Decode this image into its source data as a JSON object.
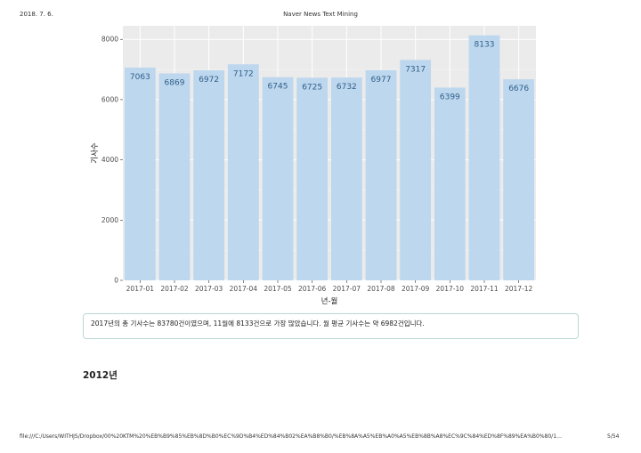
{
  "header": {
    "date": "2018. 7. 6.",
    "title": "Naver News Text Mining"
  },
  "chart_data": {
    "type": "bar",
    "categories": [
      "2017-01",
      "2017-02",
      "2017-03",
      "2017-04",
      "2017-05",
      "2017-06",
      "2017-07",
      "2017-08",
      "2017-09",
      "2017-10",
      "2017-11",
      "2017-12"
    ],
    "values": [
      7063,
      6869,
      6972,
      7172,
      6745,
      6725,
      6732,
      6977,
      7317,
      6399,
      8133,
      6676
    ],
    "xlabel": "년-월",
    "ylabel": "기사수",
    "ylim": [
      0,
      8450
    ],
    "yticks": [
      0,
      2000,
      4000,
      6000,
      8000
    ],
    "grid": true,
    "bar_color": "#bdd7ee",
    "panel_color": "#ebebeb",
    "label_color": "#2f5f8a"
  },
  "summary": {
    "text": "2017년의 총 기사수는 83780건이였으며, 11월에 8133건으로 가장 많았습니다. 월 평균 기사수는 약 6982건입니다."
  },
  "section": {
    "title": "2012년"
  },
  "footer": {
    "url": "file:///C:/Users/WITHJS/Dropbox/00%20KTM%20%EB%B9%85%EB%8D%B0%EC%9D%B4%ED%84%B02%EA%B8%B0/%EB%8A%A5%EB%A0%A5%EB%8B%A8%EC%9C%84%ED%8F%89%EA%B0%80/1…",
    "page": "5/54"
  }
}
